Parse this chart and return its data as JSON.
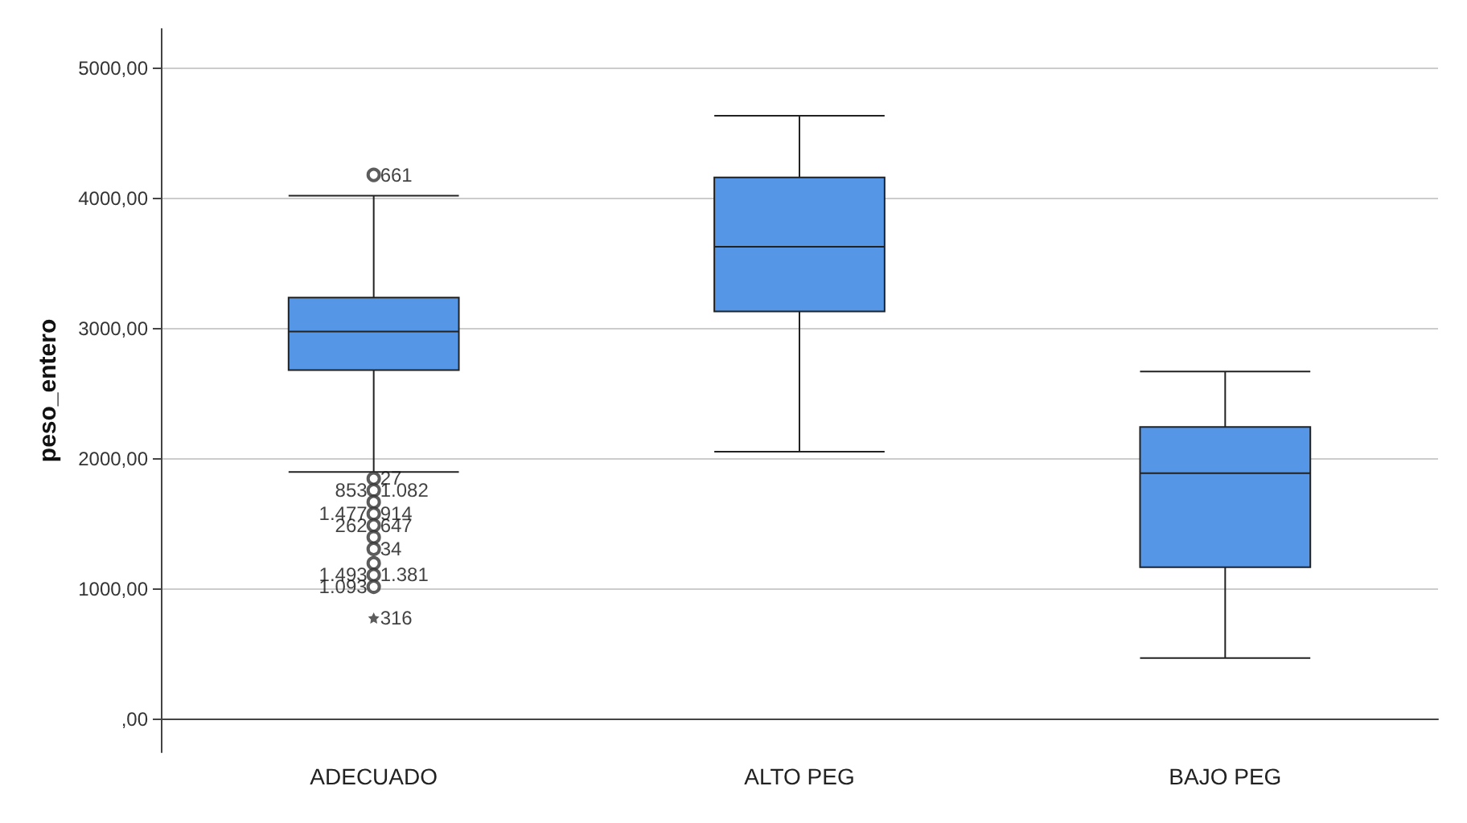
{
  "chart_data": {
    "type": "box",
    "ylabel": "peso_entero",
    "categories": [
      "ADECUADO",
      "ALTO PEG",
      "BAJO PEG"
    ],
    "color": "#5596e6",
    "boxes": [
      {
        "low": 1900,
        "q1": 2683,
        "median": 2979,
        "q3": 3239,
        "high": 4020
      },
      {
        "low": 2057,
        "q1": 3132,
        "median": 3629,
        "q3": 4161,
        "high": 4634
      },
      {
        "low": 473,
        "q1": 1170,
        "median": 1891,
        "q3": 2246,
        "high": 2671
      }
    ],
    "series": [
      {
        "type": "scatter",
        "marker": "circle",
        "color": "#333333",
        "x": [
          "ADECUADO",
          "ADECUADO",
          "ADECUADO",
          "ADECUADO",
          "ADECUADO",
          "ADECUADO",
          "ADECUADO",
          "ADECUADO",
          "ADECUADO",
          "ADECUADO",
          "ADECUADO"
        ],
        "values": [
          4180,
          1850,
          1760,
          1670,
          1580,
          1490,
          1400,
          1310,
          1200,
          1110,
          1020
        ]
      },
      {
        "type": "scatter",
        "marker": "star",
        "color": "#333333",
        "x": [
          "ADECUADO"
        ],
        "values": [
          780
        ]
      }
    ],
    "ylim": [
      -250,
      5300
    ],
    "yticks": [
      {
        "value": 0,
        "label": ",00"
      },
      {
        "value": 1000,
        "label": "1000,00"
      },
      {
        "value": 2000,
        "label": "2000,00"
      },
      {
        "value": 3000,
        "label": "3000,00"
      },
      {
        "value": 4000,
        "label": "4000,00"
      },
      {
        "value": 5000,
        "label": "5000,00"
      }
    ],
    "grid": "y",
    "annotations": [
      {
        "text": "661",
        "x": "ADECUADO",
        "y": 4180
      },
      {
        "text": "27",
        "x": "ADECUADO",
        "y": 1850
      },
      {
        "text": "853",
        "x": "ADECUADO",
        "y": 1760
      },
      {
        "text": "1.082",
        "x": "ADECUADO",
        "y": 1760
      },
      {
        "text": "1.477",
        "x": "ADECUADO",
        "y": 1580
      },
      {
        "text": "914",
        "x": "ADECUADO",
        "y": 1580
      },
      {
        "text": "262",
        "x": "ADECUADO",
        "y": 1490
      },
      {
        "text": "647",
        "x": "ADECUADO",
        "y": 1490
      },
      {
        "text": "34",
        "x": "ADECUADO",
        "y": 1310
      },
      {
        "text": "1.493",
        "x": "ADECUADO",
        "y": 1110
      },
      {
        "text": "1.381",
        "x": "ADECUADO",
        "y": 1110
      },
      {
        "text": "1.093",
        "x": "ADECUADO",
        "y": 1020
      },
      {
        "text": "316",
        "x": "ADECUADO",
        "y": 780
      }
    ]
  }
}
